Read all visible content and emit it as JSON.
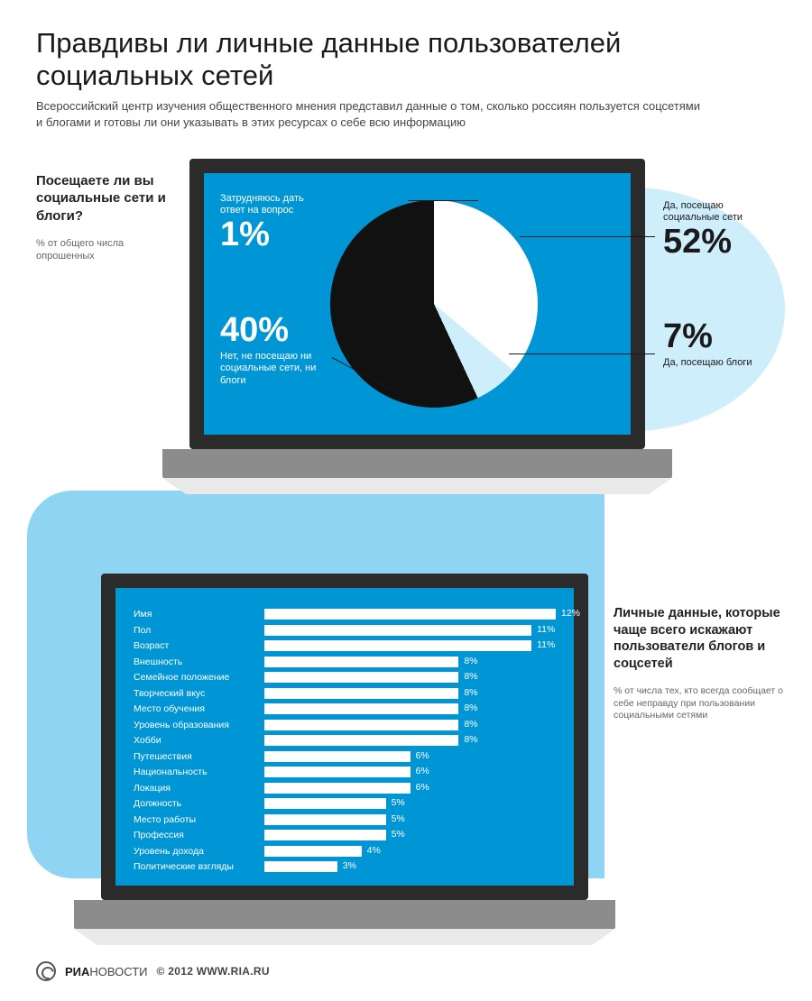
{
  "title": "Правдивы ли личные данные пользователей социальных сетей",
  "subtitle": "Всероссийский центр изучения общественного мнения представил данные о том, сколько россиян пользуется соцсетями и блогами и готовы ли они указывать в этих ресурсах о себе всю информацию",
  "palette": {
    "screen_bg": "#0096d6",
    "bubble_light": "#cfeefc",
    "bubble_mid": "#8fd5f3",
    "frame": "#2b2b2b",
    "base": "#8c8c8c",
    "white": "#ffffff",
    "black": "#111111"
  },
  "question1": {
    "label": "Посещаете ли вы социальные сети и блоги?",
    "note": "% от общего числа опрошенных"
  },
  "pie": {
    "type": "pie",
    "slices": [
      {
        "key": "hard",
        "label": "Затрудняюсь дать ответ на вопрос",
        "value": 1,
        "pct": "1%",
        "color": "#4b4b4b",
        "start": -61,
        "end": -57
      },
      {
        "key": "social",
        "label": "Да, посещаю социальные сети",
        "value": 52,
        "pct": "52%",
        "color": "#ffffff",
        "start": -57,
        "end": 130
      },
      {
        "key": "blogs",
        "label": "Да, посещаю блоги",
        "value": 7,
        "pct": "7%",
        "color": "#cfeefc",
        "start": 130,
        "end": 155
      },
      {
        "key": "no",
        "label": "Нет, не посещаю ни социальные сети, ни блоги",
        "value": 40,
        "pct": "40%",
        "color": "#111111",
        "start": 155,
        "end": 299
      }
    ]
  },
  "question2": {
    "label": "Личные данные, которые чаще всего искажают пользователи блогов и соцсетей",
    "note": "% от числа тех, кто всегда сообщает о себе неправду при пользовании социальными сетями"
  },
  "bars": {
    "type": "bar-horizontal",
    "max": 12,
    "bar_color": "#ffffff",
    "label_color": "#ffffff",
    "fontsize": 10.5,
    "items": [
      {
        "label": "Имя",
        "value": 12,
        "pct": "12%"
      },
      {
        "label": "Пол",
        "value": 11,
        "pct": "11%"
      },
      {
        "label": "Возраст",
        "value": 11,
        "pct": "11%"
      },
      {
        "label": "Внешность",
        "value": 8,
        "pct": "8%"
      },
      {
        "label": "Семейное положение",
        "value": 8,
        "pct": "8%"
      },
      {
        "label": "Творческий вкус",
        "value": 8,
        "pct": "8%"
      },
      {
        "label": "Место обучения",
        "value": 8,
        "pct": "8%"
      },
      {
        "label": "Уровень образования",
        "value": 8,
        "pct": "8%"
      },
      {
        "label": "Хобби",
        "value": 8,
        "pct": "8%"
      },
      {
        "label": "Путешествия",
        "value": 6,
        "pct": "6%"
      },
      {
        "label": "Национальность",
        "value": 6,
        "pct": "6%"
      },
      {
        "label": "Локация",
        "value": 6,
        "pct": "6%"
      },
      {
        "label": "Должность",
        "value": 5,
        "pct": "5%"
      },
      {
        "label": "Место работы",
        "value": 5,
        "pct": "5%"
      },
      {
        "label": "Профессия",
        "value": 5,
        "pct": "5%"
      },
      {
        "label": "Уровень дохода",
        "value": 4,
        "pct": "4%"
      },
      {
        "label": "Политические взгляды",
        "value": 3,
        "pct": "3%"
      }
    ]
  },
  "footer": {
    "brand_b": "РИА",
    "brand_l": "НОВОСТИ",
    "copy": "© 2012 WWW.RIA.RU"
  }
}
